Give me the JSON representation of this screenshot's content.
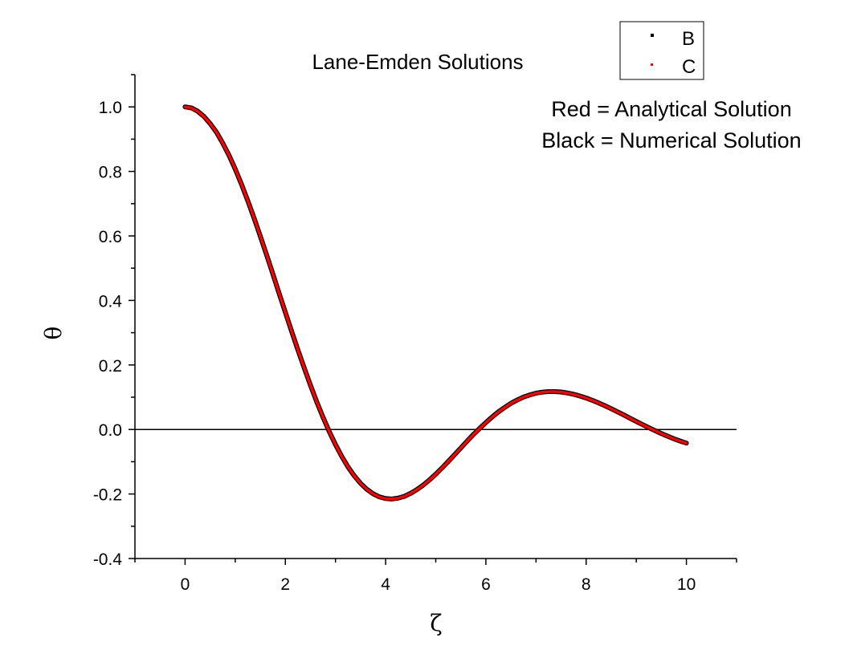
{
  "chart_data": {
    "type": "line",
    "title": "Lane-Emden Solutions",
    "xlabel": "ζ",
    "ylabel": "θ",
    "xlim": [
      -1,
      11
    ],
    "ylim": [
      -0.4,
      1.1
    ],
    "x_ticks": [
      0,
      2,
      4,
      6,
      8,
      10
    ],
    "x_tick_labels": [
      "0",
      "2",
      "4",
      "6",
      "8",
      "10"
    ],
    "y_ticks": [
      -0.4,
      -0.2,
      0.0,
      0.2,
      0.4,
      0.6,
      0.8,
      1.0
    ],
    "y_tick_labels": [
      "-0.4",
      "-0.2",
      "0.0",
      "0.2",
      "0.4",
      "0.6",
      "0.8",
      "1.0"
    ],
    "reference_line_y": 0,
    "grid": false,
    "legend_position": "top-right",
    "series": [
      {
        "name": "B",
        "color": "#000000",
        "values": [
          1.0,
          0.997,
          0.9867,
          0.9705,
          0.9483,
          0.9217,
          0.8879,
          0.8504,
          0.8075,
          0.7602,
          0.7094,
          0.6558,
          0.5994,
          0.5417,
          0.4826,
          0.4223,
          0.3632,
          0.3043,
          0.2469,
          0.1913,
          0.1376,
          0.0861,
          0.0384,
          -0.0061,
          -0.0467,
          -0.0835,
          -0.1161,
          -0.1437,
          -0.1668,
          -0.1854,
          -0.1993,
          -0.2088,
          -0.2141,
          -0.2155,
          -0.2128,
          -0.2072,
          -0.1979,
          -0.1862,
          -0.1724,
          -0.1563,
          -0.1384,
          -0.1193,
          -0.099,
          -0.0784,
          -0.0573,
          -0.0362,
          -0.0156,
          0.0032,
          0.0214,
          0.0388,
          0.0546,
          0.0684,
          0.0811,
          0.0914,
          0.1004,
          0.1071,
          0.1125,
          0.1157,
          0.1173,
          0.1175,
          0.1162,
          0.1132,
          0.1092,
          0.1038,
          0.0976,
          0.0903,
          0.0822,
          0.0736,
          0.0644,
          0.0548,
          0.045,
          0.0349,
          0.0249,
          0.0151,
          0.0055,
          -0.0037,
          -0.0126,
          -0.0208,
          -0.0288,
          -0.0359,
          -0.0423
        ]
      },
      {
        "name": "C",
        "color": "#ff0000",
        "values": [
          1.0,
          0.997,
          0.9867,
          0.9705,
          0.9483,
          0.9217,
          0.8879,
          0.8504,
          0.8075,
          0.7602,
          0.7094,
          0.6558,
          0.5994,
          0.5417,
          0.4826,
          0.4223,
          0.3632,
          0.3043,
          0.2469,
          0.1913,
          0.1376,
          0.0861,
          0.0384,
          -0.0061,
          -0.0467,
          -0.0835,
          -0.1161,
          -0.1437,
          -0.1668,
          -0.1854,
          -0.1993,
          -0.2088,
          -0.2141,
          -0.2155,
          -0.2128,
          -0.2072,
          -0.1979,
          -0.1862,
          -0.1724,
          -0.1563,
          -0.1384,
          -0.1193,
          -0.099,
          -0.0784,
          -0.0573,
          -0.0362,
          -0.0156,
          0.0032,
          0.0214,
          0.0388,
          0.0546,
          0.0684,
          0.0811,
          0.0914,
          0.1004,
          0.1071,
          0.1125,
          0.1157,
          0.1173,
          0.1175,
          0.1162,
          0.1132,
          0.1092,
          0.1038,
          0.0976,
          0.0903,
          0.0822,
          0.0736,
          0.0644,
          0.0548,
          0.045,
          0.0349,
          0.0249,
          0.0151,
          0.0055,
          -0.0037,
          -0.0126,
          -0.0208,
          -0.0288,
          -0.0359,
          -0.0423
        ]
      }
    ],
    "x": [
      0,
      0.125,
      0.25,
      0.375,
      0.5,
      0.625,
      0.75,
      0.875,
      1.0,
      1.125,
      1.25,
      1.375,
      1.5,
      1.625,
      1.75,
      1.875,
      2.0,
      2.125,
      2.25,
      2.375,
      2.5,
      2.625,
      2.75,
      2.875,
      3.0,
      3.125,
      3.25,
      3.375,
      3.5,
      3.625,
      3.75,
      3.875,
      4.0,
      4.125,
      4.25,
      4.375,
      4.5,
      4.625,
      4.75,
      4.875,
      5.0,
      5.125,
      5.25,
      5.375,
      5.5,
      5.625,
      5.75,
      5.875,
      6.0,
      6.125,
      6.25,
      6.375,
      6.5,
      6.625,
      6.75,
      6.875,
      7.0,
      7.125,
      7.25,
      7.375,
      7.5,
      7.625,
      7.75,
      7.875,
      8.0,
      8.125,
      8.25,
      8.375,
      8.5,
      8.625,
      8.75,
      8.875,
      9.0,
      9.125,
      9.25,
      9.375,
      9.5,
      9.625,
      9.75,
      9.875,
      10.0
    ],
    "annotations": [
      "Red = Analytical Solution",
      "Black = Numerical Solution"
    ]
  }
}
